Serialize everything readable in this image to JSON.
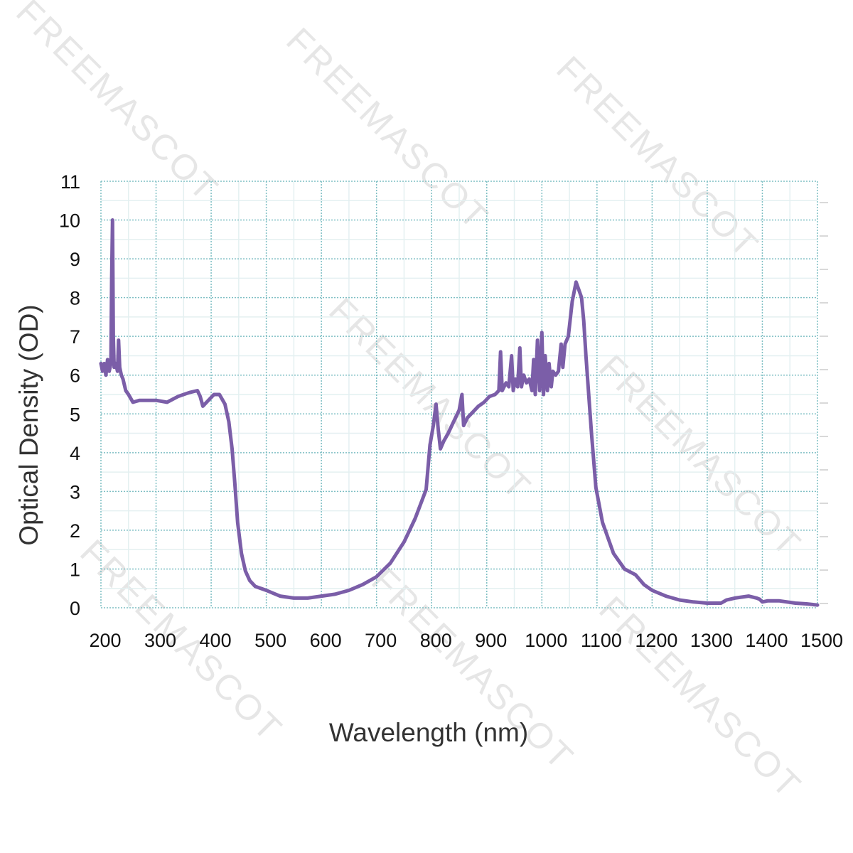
{
  "watermark": "FREEMASCOT",
  "chart_data": {
    "type": "line",
    "title": "",
    "xlabel": "Wavelength (nm)",
    "ylabel": "Optical Density (OD)",
    "xlim": [
      200,
      1500
    ],
    "ylim": [
      0,
      11
    ],
    "xticks": [
      200,
      300,
      400,
      500,
      600,
      700,
      800,
      900,
      1000,
      1100,
      1200,
      1300,
      1400,
      1500
    ],
    "yticks": [
      0,
      1,
      2,
      3,
      4,
      5,
      6,
      7,
      8,
      9,
      10,
      11
    ],
    "grid": true,
    "legend": "none",
    "color": "#7b5ea8",
    "grid_color": "#7fbfc4",
    "series": [
      {
        "x": [
          200,
          203,
          206,
          209,
          212,
          215,
          218,
          219.5,
          221,
          222.5,
          224,
          227,
          230,
          232,
          234,
          237,
          240,
          245,
          250,
          258,
          270,
          285,
          300,
          320,
          340,
          360,
          375,
          380,
          385,
          395,
          405,
          415,
          425,
          432,
          438,
          443,
          448,
          455,
          462,
          470,
          480,
          490,
          500,
          525,
          550,
          575,
          600,
          625,
          650,
          675,
          700,
          725,
          750,
          770,
          790,
          797,
          803,
          808,
          812,
          816,
          822,
          830,
          840,
          850,
          855,
          858,
          865,
          875,
          885,
          895,
          905,
          915,
          922,
          925,
          928,
          935,
          940,
          945,
          948,
          952,
          956,
          960,
          963,
          967,
          972,
          977,
          982,
          985,
          988,
          992,
          996,
          1000,
          1003,
          1006,
          1010,
          1013,
          1017,
          1020,
          1025,
          1030,
          1035,
          1038,
          1042,
          1048,
          1055,
          1062,
          1067,
          1072,
          1076,
          1080,
          1085,
          1090,
          1098,
          1110,
          1130,
          1150,
          1170,
          1185,
          1200,
          1225,
          1250,
          1275,
          1300,
          1325,
          1335,
          1350,
          1375,
          1390,
          1395,
          1400,
          1410,
          1430,
          1460,
          1480,
          1500
        ],
        "y": [
          6.3,
          6.1,
          6.3,
          6.0,
          6.4,
          6.1,
          6.3,
          8.5,
          10.0,
          7.0,
          6.2,
          6.3,
          6.1,
          6.9,
          6.2,
          6.0,
          5.9,
          5.6,
          5.5,
          5.3,
          5.35,
          5.35,
          5.35,
          5.3,
          5.45,
          5.55,
          5.6,
          5.45,
          5.2,
          5.35,
          5.5,
          5.5,
          5.25,
          4.8,
          4.1,
          3.2,
          2.2,
          1.4,
          0.95,
          0.7,
          0.55,
          0.5,
          0.45,
          0.3,
          0.25,
          0.25,
          0.3,
          0.35,
          0.45,
          0.6,
          0.8,
          1.15,
          1.7,
          2.3,
          3.05,
          4.2,
          4.7,
          5.25,
          4.6,
          4.1,
          4.3,
          4.5,
          4.8,
          5.1,
          5.5,
          4.7,
          4.9,
          5.05,
          5.2,
          5.3,
          5.45,
          5.5,
          5.6,
          6.6,
          5.6,
          5.8,
          5.7,
          6.5,
          5.6,
          5.9,
          5.7,
          6.7,
          5.7,
          6.0,
          5.8,
          5.9,
          5.6,
          6.4,
          5.5,
          6.9,
          5.6,
          7.1,
          5.5,
          6.5,
          5.6,
          6.3,
          5.7,
          6.1,
          6.0,
          6.1,
          6.8,
          6.2,
          6.8,
          7.0,
          7.9,
          8.4,
          8.2,
          8.0,
          7.4,
          6.5,
          5.5,
          4.5,
          3.1,
          2.2,
          1.4,
          1.0,
          0.85,
          0.6,
          0.45,
          0.3,
          0.2,
          0.15,
          0.12,
          0.12,
          0.2,
          0.25,
          0.3,
          0.25,
          0.22,
          0.15,
          0.18,
          0.18,
          0.12,
          0.1,
          0.07
        ]
      }
    ]
  }
}
